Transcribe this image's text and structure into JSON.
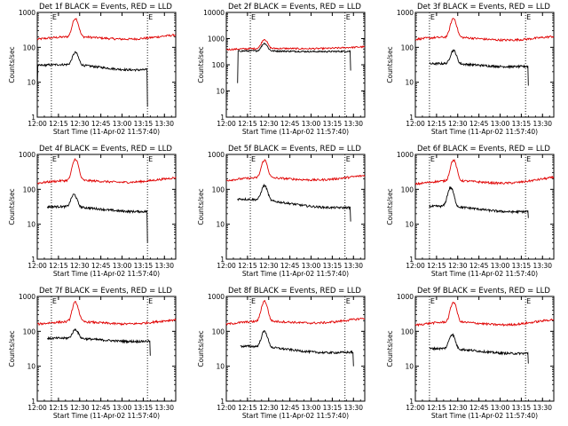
{
  "page": {
    "ylabel": "Counts/sec",
    "xlabel": "Start Time (11-Apr-02 11:57:40)",
    "marker_label": "E",
    "series_colors": {
      "events": "#000000",
      "lld": "#e00000"
    },
    "x_tick_labels": [
      "12:00",
      "12:15",
      "12:30",
      "12:45",
      "13:00",
      "13:15",
      "13:30"
    ],
    "y_tick_labels": [
      "1",
      "10",
      "100",
      "1000"
    ]
  },
  "chart_data": [
    {
      "type": "line",
      "title": "Det 1f BLACK = Events, RED = LLD",
      "xlim": [
        "12:00",
        "13:38"
      ],
      "ylim": [
        1,
        1000
      ],
      "yscale": "log",
      "markers": [
        "12:10",
        "13:18"
      ],
      "series": [
        {
          "color": "#e00000",
          "start": "12:00",
          "end": "13:38",
          "base": 170,
          "peak": 650,
          "peak_time": "12:27",
          "wave": 0.12,
          "end_value": 210
        },
        {
          "color": "#000000",
          "start": "12:00",
          "end": "13:18",
          "base": 30,
          "peak": 70,
          "peak_time": "12:27",
          "wave": 0.12,
          "end_value": 25,
          "start_drop": 4,
          "end_drop": 2
        }
      ]
    },
    {
      "type": "line",
      "title": "Det 2f BLACK = Events, RED = LLD",
      "xlim": [
        "12:00",
        "13:38"
      ],
      "ylim": [
        1,
        10000
      ],
      "yscale": "log",
      "markers": [
        "12:17",
        "13:24"
      ],
      "series": [
        {
          "color": "#e00000",
          "start": "12:00",
          "end": "13:38",
          "base": 380,
          "peak": 900,
          "peak_time": "12:27",
          "wave": 0.05,
          "end_value": 470
        },
        {
          "color": "#000000",
          "start": "12:08",
          "end": "13:28",
          "base": 330,
          "peak": 650,
          "peak_time": "12:27",
          "wave": 0.03,
          "end_value": 330,
          "start_drop": 20,
          "end_drop": 60
        }
      ]
    },
    {
      "type": "line",
      "title": "Det 3f BLACK = Events, RED = LLD",
      "xlim": [
        "12:00",
        "13:38"
      ],
      "ylim": [
        1,
        1000
      ],
      "yscale": "log",
      "markers": [
        "12:10",
        "13:18"
      ],
      "series": [
        {
          "color": "#e00000",
          "start": "12:00",
          "end": "13:38",
          "base": 170,
          "peak": 650,
          "peak_time": "12:27",
          "wave": 0.12,
          "end_value": 190
        },
        {
          "color": "#000000",
          "start": "12:10",
          "end": "13:20",
          "base": 32,
          "peak": 80,
          "peak_time": "12:27",
          "wave": 0.08,
          "end_value": 30,
          "end_drop": 8
        }
      ]
    },
    {
      "type": "line",
      "title": "Det 4f BLACK = Events, RED = LLD",
      "xlim": [
        "12:00",
        "13:38"
      ],
      "ylim": [
        1,
        1000
      ],
      "yscale": "log",
      "markers": [
        "12:10",
        "13:18"
      ],
      "series": [
        {
          "color": "#e00000",
          "start": "12:00",
          "end": "13:38",
          "base": 150,
          "peak": 700,
          "peak_time": "12:27",
          "wave": 0.12,
          "end_value": 200
        },
        {
          "color": "#000000",
          "start": "12:07",
          "end": "13:18",
          "base": 30,
          "peak": 70,
          "peak_time": "12:26",
          "wave": 0.1,
          "end_value": 25,
          "end_drop": 3
        }
      ]
    },
    {
      "type": "line",
      "title": "Det 5f BLACK = Events, RED = LLD",
      "xlim": [
        "12:00",
        "13:38"
      ],
      "ylim": [
        1,
        1000
      ],
      "yscale": "log",
      "markers": [
        "12:17",
        "13:24"
      ],
      "series": [
        {
          "color": "#e00000",
          "start": "12:00",
          "end": "13:38",
          "base": 180,
          "peak": 650,
          "peak_time": "12:27",
          "wave": 0.12,
          "end_value": 230
        },
        {
          "color": "#000000",
          "start": "12:08",
          "end": "13:28",
          "base": 50,
          "peak": 130,
          "peak_time": "12:27",
          "wave": 0.1,
          "end_value": 30,
          "end_drop": 12
        }
      ]
    },
    {
      "type": "line",
      "title": "Det 6f BLACK = Events, RED = LLD",
      "xlim": [
        "12:00",
        "13:38"
      ],
      "ylim": [
        1,
        1000
      ],
      "yscale": "log",
      "markers": [
        "12:10",
        "13:18"
      ],
      "series": [
        {
          "color": "#e00000",
          "start": "12:00",
          "end": "13:38",
          "base": 140,
          "peak": 650,
          "peak_time": "12:27",
          "wave": 0.15,
          "end_value": 200
        },
        {
          "color": "#000000",
          "start": "12:10",
          "end": "13:20",
          "base": 30,
          "peak": 110,
          "peak_time": "12:25",
          "wave": 0.12,
          "end_value": 25,
          "end_drop": 15
        }
      ]
    },
    {
      "type": "line",
      "title": "Det 7f BLACK = Events, RED = LLD",
      "xlim": [
        "12:00",
        "13:38"
      ],
      "ylim": [
        1,
        1000
      ],
      "yscale": "log",
      "markers": [
        "12:10",
        "13:18"
      ],
      "series": [
        {
          "color": "#e00000",
          "start": "12:00",
          "end": "13:38",
          "base": 160,
          "peak": 650,
          "peak_time": "12:27",
          "wave": 0.12,
          "end_value": 200
        },
        {
          "color": "#000000",
          "start": "12:07",
          "end": "13:20",
          "base": 60,
          "peak": 110,
          "peak_time": "12:27",
          "wave": 0.08,
          "end_value": 55,
          "end_drop": 20
        }
      ]
    },
    {
      "type": "line",
      "title": "Det 8f BLACK = Events, RED = LLD",
      "xlim": [
        "12:00",
        "13:38"
      ],
      "ylim": [
        1,
        1000
      ],
      "yscale": "log",
      "markers": [
        "12:17",
        "13:24"
      ],
      "series": [
        {
          "color": "#e00000",
          "start": "12:00",
          "end": "13:38",
          "base": 160,
          "peak": 700,
          "peak_time": "12:27",
          "wave": 0.12,
          "end_value": 220
        },
        {
          "color": "#000000",
          "start": "12:10",
          "end": "13:30",
          "base": 35,
          "peak": 100,
          "peak_time": "12:27",
          "wave": 0.1,
          "end_value": 25,
          "end_drop": 10
        }
      ]
    },
    {
      "type": "line",
      "title": "Det 9f BLACK = Events, RED = LLD",
      "xlim": [
        "12:00",
        "13:38"
      ],
      "ylim": [
        1,
        1000
      ],
      "yscale": "log",
      "markers": [
        "12:10",
        "13:18"
      ],
      "series": [
        {
          "color": "#e00000",
          "start": "12:00",
          "end": "13:38",
          "base": 150,
          "peak": 650,
          "peak_time": "12:27",
          "wave": 0.15,
          "end_value": 200
        },
        {
          "color": "#000000",
          "start": "12:10",
          "end": "13:20",
          "base": 30,
          "peak": 80,
          "peak_time": "12:26",
          "wave": 0.1,
          "end_value": 25,
          "end_drop": 12
        }
      ]
    }
  ]
}
